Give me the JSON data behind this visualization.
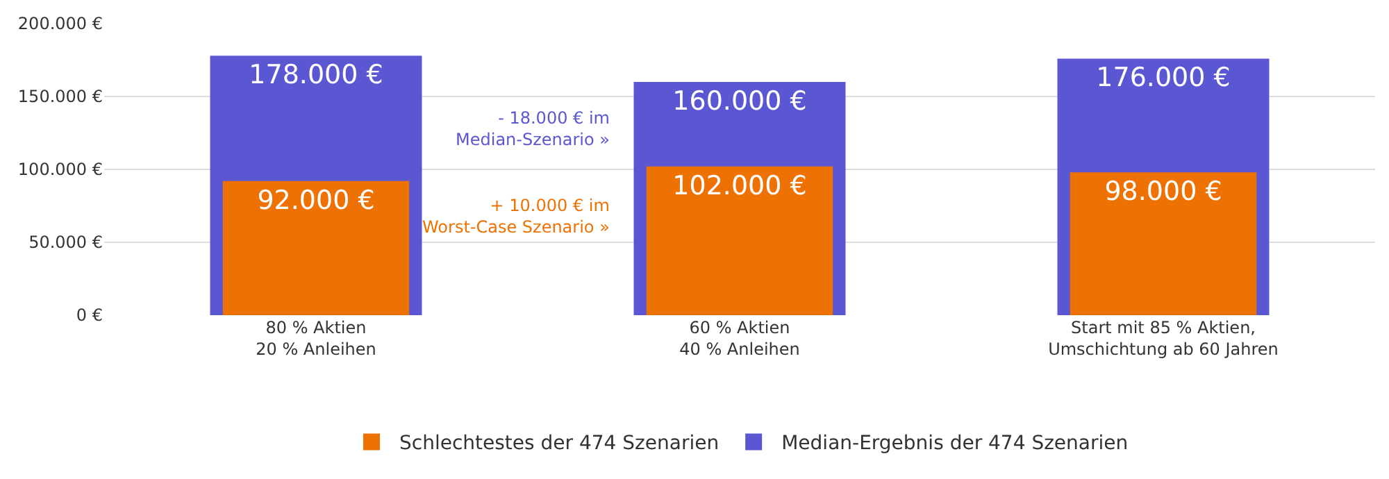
{
  "chart_data": {
    "type": "bar",
    "categories": [
      "80 % Aktien\n20 % Anleihen",
      "60 % Aktien\n40 % Anleihen",
      "Start mit 85 % Aktien,\nUmschichtung ab 60 Jahren"
    ],
    "series": [
      {
        "name": "Schlechtestes der 474 Szenarien",
        "color": "#ee7203",
        "values": [
          92000,
          102000,
          98000
        ],
        "value_labels": [
          "92.000 €",
          "102.000 €",
          "98.000 €"
        ]
      },
      {
        "name": "Median-Ergebnis der 474 Szenarien",
        "color": "#5b56d2",
        "values": [
          178000,
          160000,
          176000
        ],
        "value_labels": [
          "178.000 €",
          "160.000 €",
          "176.000 €"
        ]
      }
    ],
    "ylim": [
      0,
      200000
    ],
    "yticks": [
      {
        "value": 0,
        "label": "0 €"
      },
      {
        "value": 50000,
        "label": "50.000 €"
      },
      {
        "value": 100000,
        "label": "100.000 €"
      },
      {
        "value": 150000,
        "label": "150.000 €"
      },
      {
        "value": 200000,
        "label": "200.000 €"
      }
    ],
    "annotations": [
      "- 18.000 € im\nMedian-Szenario »",
      "+ 10.000 € im\nWorst-Case Szenario »"
    ],
    "grid": "y",
    "legend": "bottom"
  }
}
